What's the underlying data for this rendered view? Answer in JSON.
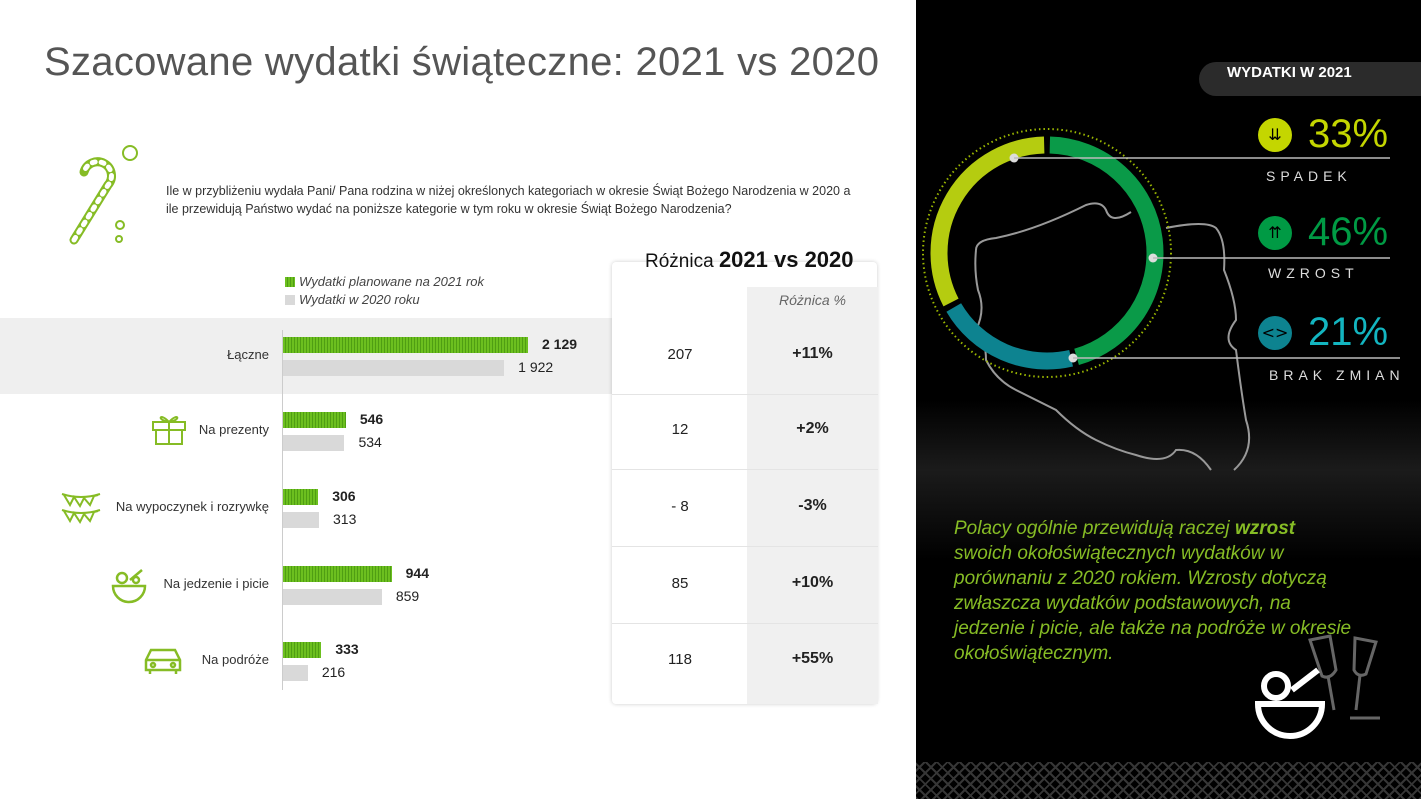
{
  "title": "Szacowane wydatki świąteczne: 2021 vs 2020",
  "question": "Ile w przybliżeniu wydała Pani/ Pana rodzina w niżej określonych kategoriach w okresie Świąt Bożego Narodzenia w 2020 a ile przewidują Państwo wydać na poniższe kategorie w tym roku w okresie Świąt Bożego Narodzenia?",
  "colors": {
    "planned_2021": "#6cbf1f",
    "spent_2020": "#d9d9d9",
    "spadek": "#c4d600",
    "wzrost": "#009a44",
    "brak_zmian": "#0d8390",
    "note": "#86bc25"
  },
  "chart_data": [
    {
      "type": "bar",
      "orientation": "horizontal",
      "categories": [
        "Łączne",
        "Na prezenty",
        "Na wypoczynek i rozrywkę",
        "Na jedzenie i picie",
        "Na podróże"
      ],
      "category_icons": [
        "none",
        "gift-icon",
        "bunting-icon",
        "salad-bowl-icon",
        "car-icon"
      ],
      "series": [
        {
          "name": "Wydatki planowane na 2021 rok",
          "values": [
            2129,
            546,
            306,
            944,
            333
          ],
          "labels": [
            "2 129",
            "546",
            "306",
            "944",
            "333"
          ]
        },
        {
          "name": "Wydatki w 2020 roku",
          "values": [
            1922,
            534,
            313,
            859,
            216
          ],
          "labels": [
            "1 922",
            "534",
            "313",
            "859",
            "216"
          ]
        }
      ],
      "legend": "top-left"
    },
    {
      "type": "table",
      "title_prefix": "Różnica",
      "title_bold": "2021 vs 2020",
      "columns": [
        "",
        "Różnica %"
      ],
      "rows": [
        [
          "207",
          "+11%"
        ],
        [
          "12",
          "+2%"
        ],
        [
          "- 8",
          "-3%"
        ],
        [
          "85",
          "+10%"
        ],
        [
          "118",
          "+55%"
        ]
      ]
    },
    {
      "type": "pie",
      "title": "WYDATKI W 2021",
      "slices": [
        {
          "label": "WZROST",
          "value": 46,
          "display": "46%",
          "icon": "chevron-up-icon"
        },
        {
          "label": "BRAK ZMIAN",
          "value": 21,
          "display": "21%",
          "icon": "code-brackets-icon"
        },
        {
          "label": "SPADEK",
          "value": 33,
          "display": "33%",
          "icon": "chevron-down-icon"
        }
      ]
    }
  ],
  "note": {
    "before": "Polacy ogólnie przewidują raczej ",
    "bold": "wzrost",
    "after": " swoich okołoświątecznych wydatków w porównaniu z 2020 rokiem. Wzrosty dotyczą zwłaszcza wydatków podstawowych, na jedzenie i picie, ale także na podróże w okresie okołoświątecznym."
  }
}
